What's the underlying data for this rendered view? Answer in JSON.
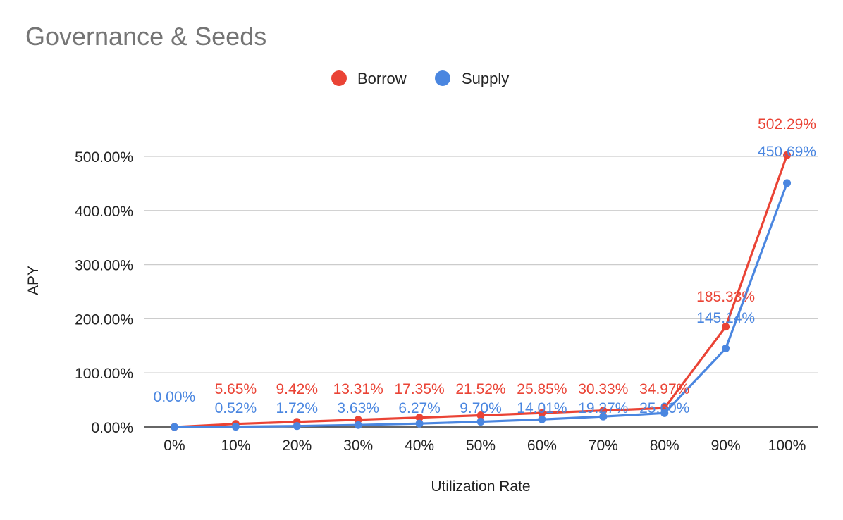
{
  "chart_data": {
    "type": "line",
    "title": "Governance & Seeds",
    "xlabel": "Utilization Rate",
    "ylabel": "APY",
    "categories": [
      "0%",
      "10%",
      "20%",
      "30%",
      "40%",
      "50%",
      "60%",
      "70%",
      "80%",
      "90%",
      "100%"
    ],
    "ylim": [
      0,
      500
    ],
    "yticks": [
      0,
      100,
      200,
      300,
      400,
      500
    ],
    "ytick_labels": [
      "0.00%",
      "100.00%",
      "200.00%",
      "300.00%",
      "400.00%",
      "500.00%"
    ],
    "grid": true,
    "legend_position": "top-center",
    "series": [
      {
        "name": "Borrow",
        "color": "#ea4335",
        "values": [
          0,
          5.65,
          9.42,
          13.31,
          17.35,
          21.52,
          25.85,
          30.33,
          34.97,
          185.33,
          502.29
        ],
        "labels": [
          "",
          "5.65%",
          "9.42%",
          "13.31%",
          "17.35%",
          "21.52%",
          "25.85%",
          "30.33%",
          "34.97%",
          "185.33%",
          "502.29%"
        ]
      },
      {
        "name": "Supply",
        "color": "#4a86e0",
        "values": [
          0,
          0.52,
          1.72,
          3.63,
          6.27,
          9.7,
          14.01,
          19.27,
          25.6,
          145.14,
          450.69
        ],
        "labels": [
          "0.00%",
          "0.52%",
          "1.72%",
          "3.63%",
          "6.27%",
          "9.70%",
          "14.01%",
          "19.27%",
          "25.60%",
          "145.14%",
          "450.69%"
        ]
      }
    ]
  }
}
